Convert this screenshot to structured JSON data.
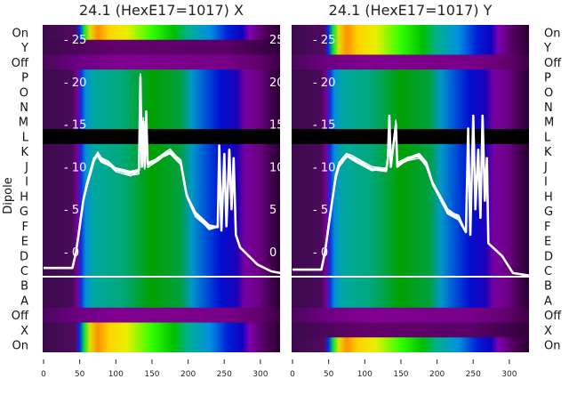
{
  "chart_data": [
    {
      "type": "heatmap",
      "title": "24.1 (HexE17=1017) X",
      "ylabel": "Dipole",
      "row_labels": [
        "On",
        "Y",
        "Off",
        "P",
        "O",
        "N",
        "M",
        "L",
        "K",
        "J",
        "I",
        "H",
        "G",
        "F",
        "E",
        "D",
        "C",
        "B",
        "A",
        "Off",
        "X",
        "On"
      ],
      "row_types": [
        "bright",
        "dark",
        "purple",
        "main",
        "main",
        "main",
        "main",
        "flagged",
        "main",
        "main",
        "main",
        "main",
        "main",
        "main",
        "main",
        "main",
        "main",
        "main",
        "main",
        "purple",
        "bright",
        "bright"
      ],
      "xticks": [
        0,
        50,
        100,
        150,
        200,
        250,
        300
      ],
      "xlim": [
        0,
        328
      ],
      "overlay_yticks": [
        0,
        5,
        10,
        15,
        20,
        25
      ],
      "overlay_ylim_note": "overlay trace in secondary units",
      "trace": [
        [
          0,
          -1.9
        ],
        [
          40,
          -1.9
        ],
        [
          45,
          0
        ],
        [
          50,
          3
        ],
        [
          55,
          6
        ],
        [
          60,
          8
        ],
        [
          65,
          9.5
        ],
        [
          70,
          11
        ],
        [
          75,
          11.3
        ],
        [
          80,
          10.6
        ],
        [
          90,
          10.2
        ],
        [
          100,
          9.8
        ],
        [
          120,
          9.4
        ],
        [
          132,
          9.6
        ],
        [
          134,
          20.6
        ],
        [
          136,
          10
        ],
        [
          138,
          15.3
        ],
        [
          140,
          10
        ],
        [
          142,
          16.5
        ],
        [
          144,
          10.4
        ],
        [
          160,
          11
        ],
        [
          175,
          11.6
        ],
        [
          190,
          10.3
        ],
        [
          198,
          6.6
        ],
        [
          210,
          4.6
        ],
        [
          229,
          3.1
        ],
        [
          241,
          2.9
        ],
        [
          243,
          12.5
        ],
        [
          246,
          2.5
        ],
        [
          250,
          11.5
        ],
        [
          253,
          3
        ],
        [
          257,
          12
        ],
        [
          260,
          5
        ],
        [
          263,
          11
        ],
        [
          266,
          2
        ],
        [
          272,
          0.5
        ],
        [
          296,
          -1.5
        ],
        [
          315,
          -2.3
        ],
        [
          328,
          -2.5
        ]
      ]
    },
    {
      "type": "heatmap",
      "title": "24.1 (HexE17=1017) Y",
      "row_labels": [
        "On",
        "Y",
        "Off",
        "P",
        "O",
        "N",
        "M",
        "L",
        "K",
        "J",
        "I",
        "H",
        "G",
        "F",
        "E",
        "D",
        "C",
        "B",
        "A",
        "Off",
        "X",
        "On"
      ],
      "row_types": [
        "bright",
        "bright",
        "purple",
        "main",
        "main",
        "main",
        "main",
        "flagged",
        "main",
        "main",
        "main",
        "main",
        "main",
        "main",
        "main",
        "main",
        "main",
        "main",
        "main",
        "purple",
        "dark",
        "bright"
      ],
      "xticks": [
        0,
        50,
        100,
        150,
        200,
        250,
        300
      ],
      "xlim": [
        0,
        328
      ],
      "overlay_yticks": [
        0,
        5,
        10,
        15,
        20,
        25
      ],
      "trace": [
        [
          0,
          -2.1
        ],
        [
          40,
          -2.1
        ],
        [
          45,
          0
        ],
        [
          50,
          3
        ],
        [
          55,
          6
        ],
        [
          60,
          9
        ],
        [
          65,
          10.5
        ],
        [
          75,
          11.5
        ],
        [
          80,
          11
        ],
        [
          90,
          10.5
        ],
        [
          110,
          9.6
        ],
        [
          130,
          9.8
        ],
        [
          132,
          11
        ],
        [
          134,
          16
        ],
        [
          136,
          10
        ],
        [
          143,
          15
        ],
        [
          145,
          10
        ],
        [
          160,
          11
        ],
        [
          175,
          11.5
        ],
        [
          185,
          10.5
        ],
        [
          194,
          8
        ],
        [
          215,
          4.5
        ],
        [
          230,
          3.8
        ],
        [
          240,
          2.3
        ],
        [
          243,
          14.5
        ],
        [
          246,
          2
        ],
        [
          250,
          16
        ],
        [
          253,
          5
        ],
        [
          257,
          12
        ],
        [
          260,
          4
        ],
        [
          263,
          16
        ],
        [
          266,
          6
        ],
        [
          269,
          11
        ],
        [
          271,
          1
        ],
        [
          290,
          -0.5
        ],
        [
          305,
          -2.5
        ],
        [
          328,
          -2.8
        ]
      ]
    }
  ],
  "colors": {
    "main": [
      [
        0,
        "#3c0a4c"
      ],
      [
        40,
        "#4a0a5c"
      ],
      [
        46,
        "#7a0090"
      ],
      [
        52,
        "#1030e0"
      ],
      [
        58,
        "#0090d8"
      ],
      [
        70,
        "#00a8a0"
      ],
      [
        110,
        "#00a878"
      ],
      [
        150,
        "#00a000"
      ],
      [
        190,
        "#00a040"
      ],
      [
        205,
        "#0098c8"
      ],
      [
        225,
        "#0050d8"
      ],
      [
        245,
        "#0010d0"
      ],
      [
        268,
        "#2000b8"
      ],
      [
        278,
        "#7800a0"
      ],
      [
        300,
        "#6a0080"
      ],
      [
        315,
        "#40004c"
      ],
      [
        328,
        "#260030"
      ]
    ],
    "bright": [
      [
        0,
        "#3c0a4c"
      ],
      [
        44,
        "#500a60"
      ],
      [
        50,
        "#0030f0"
      ],
      [
        56,
        "#00e040"
      ],
      [
        64,
        "#e0e000"
      ],
      [
        75,
        "#ff9000"
      ],
      [
        90,
        "#ffd000"
      ],
      [
        115,
        "#e8f000"
      ],
      [
        150,
        "#30ff00"
      ],
      [
        180,
        "#00c000"
      ],
      [
        200,
        "#00b090"
      ],
      [
        230,
        "#0090e0"
      ],
      [
        255,
        "#0020d8"
      ],
      [
        275,
        "#1000c0"
      ],
      [
        285,
        "#8000b0"
      ],
      [
        305,
        "#50005c"
      ],
      [
        328,
        "#2a0030"
      ]
    ],
    "purple": [
      [
        0,
        "#4a0a5c"
      ],
      [
        40,
        "#6a0080"
      ],
      [
        100,
        "#800090"
      ],
      [
        250,
        "#780088"
      ],
      [
        300,
        "#60006c"
      ],
      [
        328,
        "#3a0040"
      ]
    ],
    "dark": [
      [
        0,
        "#3c0a4c"
      ],
      [
        100,
        "#62006c"
      ],
      [
        250,
        "#5a0068"
      ],
      [
        328,
        "#30003a"
      ]
    ],
    "flagged": "#000000",
    "trace": "#ffffff",
    "marker_line": "#ffffff"
  }
}
